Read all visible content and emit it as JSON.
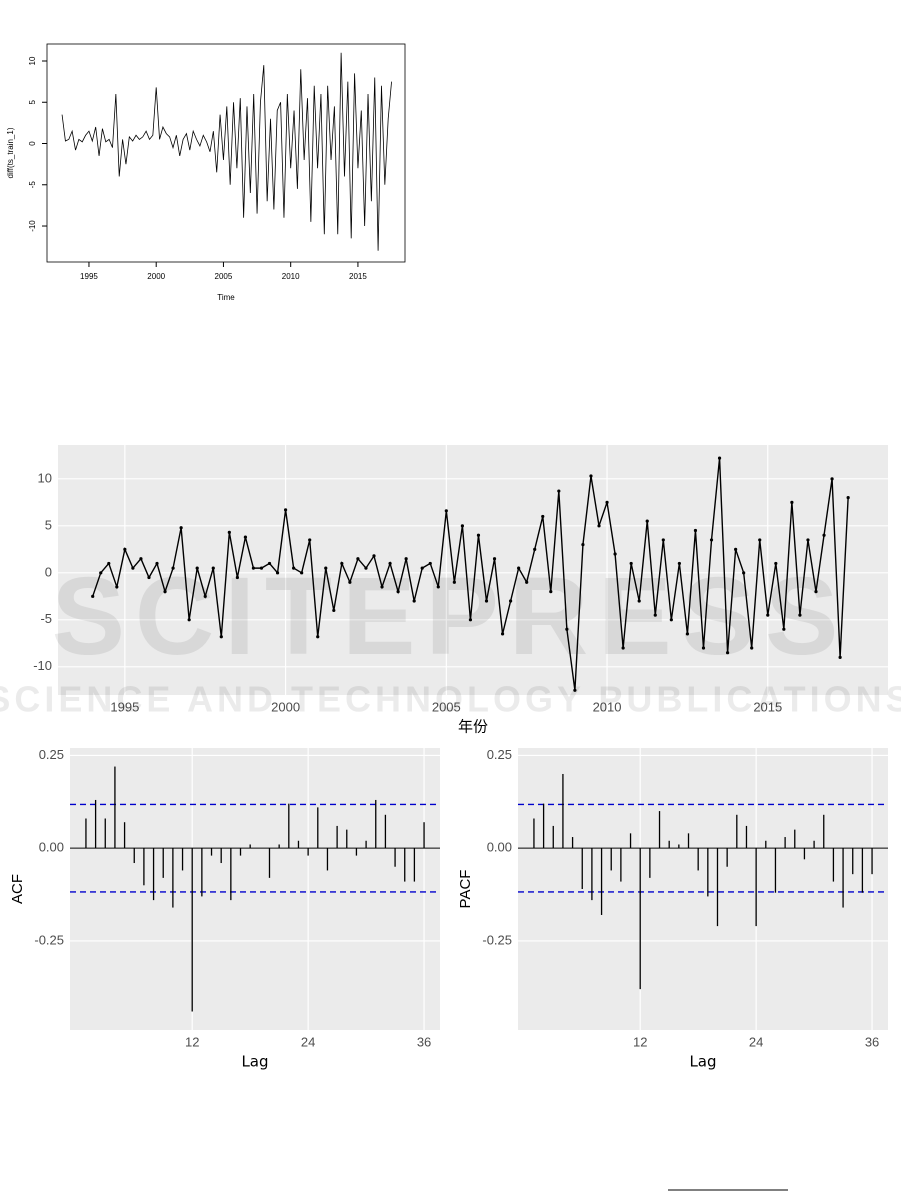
{
  "chart_data": [
    {
      "type": "line",
      "x_label": "Time",
      "y_label": "diff(ts_train_1)",
      "x": [
        1993,
        1993.25,
        1993.5,
        1993.75,
        1994,
        1994.25,
        1994.5,
        1994.75,
        1995,
        1995.25,
        1995.5,
        1995.75,
        1996,
        1996.25,
        1996.5,
        1996.75,
        1997,
        1997.25,
        1997.5,
        1997.75,
        1998,
        1998.25,
        1998.5,
        1998.75,
        1999,
        1999.25,
        1999.5,
        1999.75,
        2000,
        2000.25,
        2000.5,
        2000.75,
        2001,
        2001.25,
        2001.5,
        2001.75,
        2002,
        2002.25,
        2002.5,
        2002.75,
        2003,
        2003.25,
        2003.5,
        2003.75,
        2004,
        2004.25,
        2004.5,
        2004.75,
        2005,
        2005.25,
        2005.5,
        2005.75,
        2006,
        2006.25,
        2006.5,
        2006.75,
        2007,
        2007.25,
        2007.5,
        2007.75,
        2008,
        2008.25,
        2008.5,
        2008.75,
        2009,
        2009.25,
        2009.5,
        2009.75,
        2010,
        2010.25,
        2010.5,
        2010.75,
        2011,
        2011.25,
        2011.5,
        2011.75,
        2012,
        2012.25,
        2012.5,
        2012.75,
        2013,
        2013.25,
        2013.5,
        2013.75,
        2014,
        2014.25,
        2014.5,
        2014.75,
        2015,
        2015.25,
        2015.5,
        2015.75,
        2016,
        2016.25,
        2016.5,
        2016.75,
        2017,
        2017.25,
        2017.5
      ],
      "values": [
        3.5,
        0.3,
        0.5,
        1.5,
        -0.8,
        0.5,
        0.2,
        1.0,
        1.5,
        0.3,
        2.0,
        -1.5,
        1.8,
        0.2,
        0.5,
        -0.5,
        6.0,
        -4.0,
        0.5,
        -2.5,
        0.8,
        0.3,
        1.0,
        0.5,
        0.8,
        1.5,
        0.5,
        1.0,
        6.8,
        0.5,
        2.0,
        1.2,
        0.8,
        -0.5,
        1.0,
        -1.5,
        0.5,
        1.2,
        -0.8,
        1.5,
        0.5,
        -0.3,
        1.0,
        0.2,
        -1.0,
        1.5,
        -3.5,
        3.5,
        -2.0,
        4.5,
        -5.0,
        5.0,
        -3.0,
        5.5,
        -9.0,
        4.5,
        -6.0,
        6.0,
        -8.5,
        5.0,
        9.5,
        -7.0,
        3.0,
        -8.0,
        4.0,
        5.0,
        -9.0,
        6.0,
        -3.0,
        4.0,
        -5.5,
        9.0,
        -2.0,
        5.5,
        -9.5,
        7.0,
        -3.0,
        6.0,
        -11.0,
        7.0,
        -2.0,
        4.5,
        -11.0,
        11.0,
        -4.0,
        7.5,
        -11.5,
        8.5,
        -3.0,
        4.0,
        -10.0,
        6.0,
        -7.0,
        8.0,
        -13.0,
        7.0,
        -5.0,
        3.0,
        7.5
      ],
      "color": "#000000",
      "xlim": [
        1991.88,
        2018.5
      ],
      "ylim": [
        -14.36,
        12.06
      ],
      "xticks": [
        1995,
        2000,
        2005,
        2010,
        2015
      ],
      "yticks": [
        -10,
        -5,
        0,
        5,
        10
      ],
      "grid": false
    },
    {
      "type": "line",
      "x_label": "年份",
      "x": [
        1994,
        1994.25,
        1994.5,
        1994.75,
        1995,
        1995.25,
        1995.5,
        1995.75,
        1996,
        1996.25,
        1996.5,
        1996.75,
        1997,
        1997.25,
        1997.5,
        1997.75,
        1998,
        1998.25,
        1998.5,
        1998.75,
        1999,
        1999.25,
        1999.5,
        1999.75,
        2000,
        2000.25,
        2000.5,
        2000.75,
        2001,
        2001.25,
        2001.5,
        2001.75,
        2002,
        2002.25,
        2002.5,
        2002.75,
        2003,
        2003.25,
        2003.5,
        2003.75,
        2004,
        2004.25,
        2004.5,
        2004.75,
        2005,
        2005.25,
        2005.5,
        2005.75,
        2006,
        2006.25,
        2006.5,
        2006.75,
        2007,
        2007.25,
        2007.5,
        2007.75,
        2008,
        2008.25,
        2008.5,
        2008.75,
        2009,
        2009.25,
        2009.5,
        2009.75,
        2010,
        2010.25,
        2010.5,
        2010.75,
        2011,
        2011.25,
        2011.5,
        2011.75,
        2012,
        2012.25,
        2012.5,
        2012.75,
        2013,
        2013.25,
        2013.5,
        2013.75,
        2014,
        2014.25,
        2014.5,
        2014.75,
        2015,
        2015.25,
        2015.5,
        2015.75,
        2016,
        2016.25,
        2016.5,
        2016.75,
        2017,
        2017.25,
        2017.5
      ],
      "values": [
        -2.5,
        0.0,
        1.0,
        -1.5,
        2.5,
        0.5,
        1.5,
        -0.5,
        1.0,
        -2.0,
        0.5,
        4.8,
        -5.0,
        0.5,
        -2.5,
        0.5,
        -6.8,
        4.3,
        -0.5,
        3.8,
        0.5,
        0.5,
        1.0,
        0.0,
        6.7,
        0.5,
        0.0,
        3.5,
        -6.8,
        0.5,
        -4.0,
        1.0,
        -1.0,
        1.5,
        0.5,
        1.8,
        -1.5,
        1.0,
        -2.0,
        1.5,
        -3.0,
        0.5,
        1.0,
        -1.5,
        6.6,
        -1.0,
        5.0,
        -5.0,
        4.0,
        -3.0,
        1.5,
        -6.5,
        -3.0,
        0.5,
        -1.0,
        2.5,
        6.0,
        -2.0,
        8.7,
        -6.0,
        -12.5,
        3.0,
        10.3,
        5.0,
        7.5,
        2.0,
        -8.0,
        1.0,
        -3.0,
        5.5,
        -4.5,
        3.5,
        -5.0,
        1.0,
        -6.5,
        4.5,
        -8.0,
        3.5,
        12.2,
        -8.5,
        2.5,
        0.0,
        -8.0,
        3.5,
        -4.5,
        1.0,
        -6.0,
        7.5,
        -4.5,
        3.5,
        -2.0,
        4.0,
        10.0,
        -9.0,
        8.0
      ],
      "color": "#000000",
      "xlim": [
        1992.92,
        2018.74
      ],
      "ylim": [
        -13,
        13.6
      ],
      "xticks": [
        1995,
        2000,
        2005,
        2010,
        2015
      ],
      "yticks": [
        -10,
        -5,
        0,
        5,
        10
      ],
      "grid": true
    },
    {
      "type": "bar",
      "x_label": "Lag",
      "y_label": "ACF",
      "x": [
        1,
        2,
        3,
        4,
        5,
        6,
        7,
        8,
        9,
        10,
        11,
        12,
        13,
        14,
        15,
        16,
        17,
        18,
        19,
        20,
        21,
        22,
        23,
        24,
        25,
        26,
        27,
        28,
        29,
        30,
        31,
        32,
        33,
        34,
        35,
        36
      ],
      "values": [
        0.08,
        0.13,
        0.08,
        0.22,
        0.07,
        -0.04,
        -0.1,
        -0.14,
        -0.08,
        -0.16,
        -0.06,
        -0.44,
        -0.13,
        -0.02,
        -0.04,
        -0.14,
        -0.02,
        0.01,
        0.0,
        -0.08,
        0.01,
        0.12,
        0.02,
        -0.02,
        0.11,
        -0.06,
        0.06,
        0.05,
        -0.02,
        0.02,
        0.13,
        0.09,
        -0.05,
        -0.09,
        -0.09,
        0.07
      ],
      "color": "#000000",
      "bound": 0.118,
      "bound_color": "#0000cc",
      "xlim": [
        -0.65,
        37.65
      ],
      "ylim": [
        -0.49,
        0.27
      ],
      "xticks": [
        12,
        24,
        36
      ],
      "yticks": [
        -0.25,
        {
          "value": 0,
          "label": "0.00"
        },
        0.25
      ],
      "grid": true
    },
    {
      "type": "bar",
      "x_label": "Lag",
      "y_label": "PACF",
      "x": [
        1,
        2,
        3,
        4,
        5,
        6,
        7,
        8,
        9,
        10,
        11,
        12,
        13,
        14,
        15,
        16,
        17,
        18,
        19,
        20,
        21,
        22,
        23,
        24,
        25,
        26,
        27,
        28,
        29,
        30,
        31,
        32,
        33,
        34,
        35,
        36
      ],
      "values": [
        0.08,
        0.12,
        0.06,
        0.2,
        0.03,
        -0.11,
        -0.14,
        -0.18,
        -0.06,
        -0.09,
        0.04,
        -0.38,
        -0.08,
        0.1,
        0.02,
        0.01,
        0.04,
        -0.06,
        -0.13,
        -0.21,
        -0.05,
        0.09,
        0.06,
        -0.21,
        0.02,
        -0.12,
        0.03,
        0.05,
        -0.03,
        0.02,
        0.09,
        -0.09,
        -0.16,
        -0.07,
        -0.12,
        -0.07
      ],
      "color": "#000000",
      "bound": 0.118,
      "bound_color": "#0000cc",
      "xlim": [
        -0.65,
        37.65
      ],
      "ylim": [
        -0.49,
        0.27
      ],
      "xticks": [
        12,
        24,
        36
      ],
      "yticks": [
        -0.25,
        {
          "value": 0,
          "label": "0.00"
        },
        0.25
      ],
      "grid": true
    }
  ],
  "watermark": {
    "title": "SCITEPRESS",
    "subtitle": "SCIENCE AND TECHNOLOGY PUBLICATIONS"
  }
}
